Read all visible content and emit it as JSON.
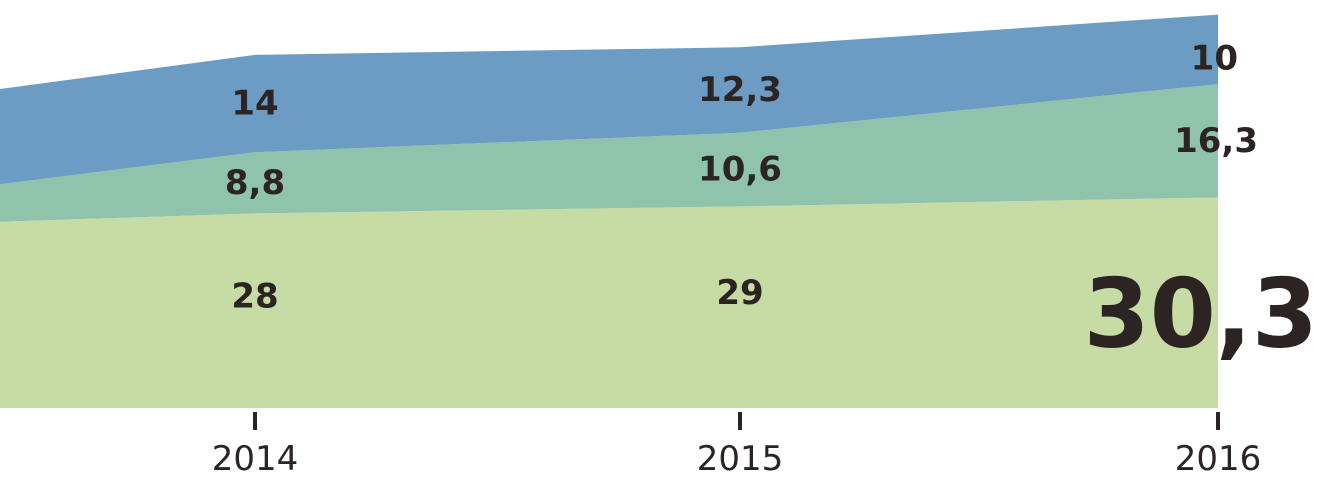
{
  "chart_data": {
    "type": "area",
    "stacked": true,
    "title": "",
    "categories": [
      "2014",
      "2015",
      "2016"
    ],
    "series": [
      {
        "name": "bottom-band",
        "color": "#c7dba5",
        "values": [
          28,
          29,
          30.3
        ],
        "labels": [
          "28",
          "29",
          "30,3"
        ]
      },
      {
        "name": "middle-band",
        "color": "#8fc3ab",
        "values": [
          8.8,
          10.6,
          16.3
        ],
        "labels": [
          "8,8",
          "10,6",
          "16,3"
        ]
      },
      {
        "name": "top-band",
        "color": "#6c9cc3",
        "values": [
          14,
          12.3,
          10
        ],
        "labels": [
          "14",
          "12,3",
          "10"
        ]
      }
    ],
    "clipped_left_edge_values": [
      26.8,
      5.4,
      13.7
    ],
    "decimal_separator": ",",
    "legend": "none",
    "grid": false,
    "xlabel": "",
    "ylabel": "",
    "axis": {
      "tick_labels": [
        "2014",
        "2015",
        "2016"
      ]
    },
    "text_color": "#2b2422",
    "emphasis_label": "30,3"
  }
}
